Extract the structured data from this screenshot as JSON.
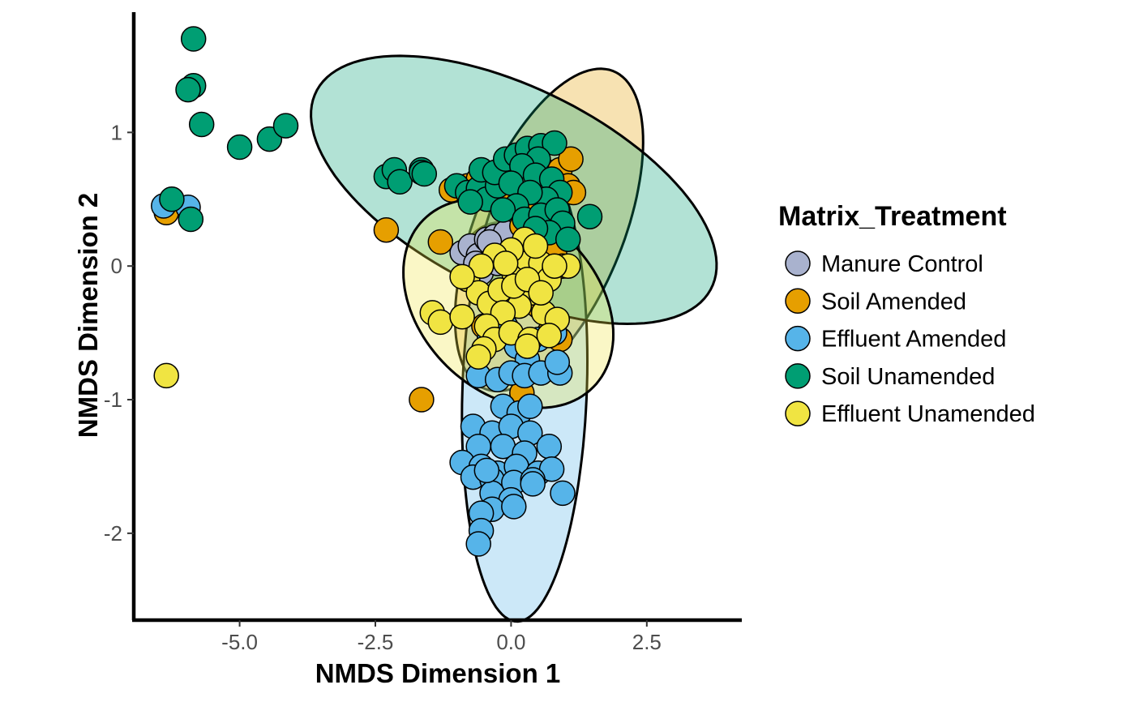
{
  "chart_data": {
    "type": "scatter",
    "xlabel": "NMDS Dimension 1",
    "ylabel": "NMDS Dimension 2",
    "xlim": [
      -6.95,
      4.25
    ],
    "ylim": [
      -2.65,
      1.9
    ],
    "xticks": [
      -5.0,
      -2.5,
      0.0,
      2.5
    ],
    "xtick_labels": [
      "-5.0",
      "-2.5",
      "0.0",
      "2.5"
    ],
    "yticks": [
      1,
      0,
      -1,
      -2
    ],
    "ytick_labels": [
      "1",
      "0",
      "-1",
      "-2"
    ],
    "grid": false,
    "legend": {
      "title": "Matrix_Treatment",
      "position": "right"
    },
    "series": [
      {
        "name": "Manure Control",
        "color": "#A9B2CE",
        "ellipse": {
          "cx": -0.15,
          "cy": 0.05,
          "rx": 0.75,
          "ry": 0.28,
          "angle_deg": 0
        },
        "points": [
          [
            -0.9,
            0.1
          ],
          [
            -0.75,
            0.15
          ],
          [
            -0.6,
            0.08
          ],
          [
            -0.45,
            0.2
          ],
          [
            -0.3,
            0.22
          ],
          [
            -0.35,
            0.05
          ],
          [
            -0.55,
            -0.05
          ],
          [
            -0.2,
            0.12
          ],
          [
            -0.1,
            0.25
          ],
          [
            -0.65,
            0.02
          ],
          [
            -0.4,
            0.18
          ],
          [
            -0.25,
            0.02
          ]
        ]
      },
      {
        "name": "Soil Amended",
        "color": "#E69F00",
        "ellipse": {
          "cx": 0.7,
          "cy": 0.27,
          "rx": 1.9,
          "ry": 0.92,
          "angle_deg": 28
        },
        "points": [
          [
            -6.35,
            0.4
          ],
          [
            -2.3,
            0.27
          ],
          [
            -1.3,
            0.18
          ],
          [
            -1.65,
            -1.0
          ],
          [
            -1.1,
            0.57
          ],
          [
            -0.8,
            0.6
          ],
          [
            -0.6,
            0.65
          ],
          [
            -0.3,
            0.7
          ],
          [
            0.1,
            0.75
          ],
          [
            0.4,
            0.8
          ],
          [
            0.7,
            0.7
          ],
          [
            0.9,
            0.72
          ],
          [
            1.1,
            0.8
          ],
          [
            1.05,
            0.6
          ],
          [
            0.9,
            0.55
          ],
          [
            0.6,
            0.45
          ],
          [
            0.3,
            0.5
          ],
          [
            0.0,
            0.55
          ],
          [
            -0.4,
            0.5
          ],
          [
            0.2,
            0.3
          ],
          [
            0.5,
            0.2
          ],
          [
            0.8,
            0.1
          ],
          [
            0.95,
            0.0
          ],
          [
            0.6,
            -0.05
          ],
          [
            0.3,
            0.05
          ],
          [
            -0.2,
            -0.4
          ],
          [
            -0.5,
            -0.45
          ],
          [
            0.7,
            -0.5
          ],
          [
            0.9,
            -0.55
          ],
          [
            0.2,
            -0.95
          ],
          [
            0.15,
            -0.6
          ],
          [
            0.5,
            -0.3
          ],
          [
            -0.35,
            -0.25
          ],
          [
            1.15,
            0.55
          ]
        ]
      },
      {
        "name": "Effluent Amended",
        "color": "#56B4E9",
        "ellipse": {
          "cx": 0.25,
          "cy": -0.92,
          "rx": 1.75,
          "ry": 1.14,
          "angle_deg": 82
        },
        "points": [
          [
            -6.4,
            0.45
          ],
          [
            -5.95,
            0.44
          ],
          [
            -0.3,
            -0.5
          ],
          [
            -0.1,
            -0.45
          ],
          [
            -0.4,
            -0.55
          ],
          [
            0.1,
            -0.6
          ],
          [
            0.5,
            -0.55
          ],
          [
            0.8,
            -0.5
          ],
          [
            0.3,
            -0.7
          ],
          [
            -0.6,
            -0.82
          ],
          [
            -0.25,
            -0.85
          ],
          [
            0.0,
            -0.8
          ],
          [
            0.25,
            -0.82
          ],
          [
            0.55,
            -0.8
          ],
          [
            0.9,
            -0.8
          ],
          [
            0.85,
            -0.72
          ],
          [
            -0.15,
            -1.05
          ],
          [
            0.15,
            -1.1
          ],
          [
            0.35,
            -1.05
          ],
          [
            -0.7,
            -1.2
          ],
          [
            -0.35,
            -1.25
          ],
          [
            0.0,
            -1.2
          ],
          [
            0.35,
            -1.25
          ],
          [
            -0.6,
            -1.35
          ],
          [
            -0.15,
            -1.35
          ],
          [
            0.25,
            -1.4
          ],
          [
            0.7,
            -1.35
          ],
          [
            -0.9,
            -1.47
          ],
          [
            -0.55,
            -1.5
          ],
          [
            -0.25,
            -1.55
          ],
          [
            0.1,
            -1.5
          ],
          [
            0.5,
            -1.55
          ],
          [
            0.75,
            -1.52
          ],
          [
            -0.7,
            -1.58
          ],
          [
            -0.35,
            -1.6
          ],
          [
            0.05,
            -1.62
          ],
          [
            0.4,
            -1.6
          ],
          [
            -0.35,
            -1.7
          ],
          [
            0.0,
            -1.75
          ],
          [
            0.95,
            -1.7
          ],
          [
            -0.35,
            -1.82
          ],
          [
            -0.55,
            -1.85
          ],
          [
            0.05,
            -1.8
          ],
          [
            -0.55,
            -1.98
          ],
          [
            -0.6,
            -2.08
          ],
          [
            0.4,
            -1.63
          ],
          [
            -0.45,
            -1.53
          ]
        ]
      },
      {
        "name": "Soil Unamended",
        "color": "#009E73",
        "ellipse": {
          "cx": 0.05,
          "cy": 0.57,
          "rx": 3.78,
          "ry": 0.82,
          "angle_deg": -9
        },
        "points": [
          [
            -5.85,
            1.7
          ],
          [
            -5.85,
            1.35
          ],
          [
            -5.95,
            1.32
          ],
          [
            -5.7,
            1.06
          ],
          [
            -5.0,
            0.89
          ],
          [
            -4.45,
            0.95
          ],
          [
            -4.15,
            1.05
          ],
          [
            -6.25,
            0.5
          ],
          [
            -5.9,
            0.35
          ],
          [
            -2.3,
            0.67
          ],
          [
            -2.15,
            0.72
          ],
          [
            -2.05,
            0.63
          ],
          [
            -1.65,
            0.72
          ],
          [
            -1.65,
            0.7
          ],
          [
            -1.6,
            0.69
          ],
          [
            -1.0,
            0.6
          ],
          [
            -0.8,
            0.55
          ],
          [
            -0.6,
            0.58
          ],
          [
            -0.45,
            0.5
          ],
          [
            -0.25,
            0.6
          ],
          [
            -0.55,
            0.72
          ],
          [
            -0.3,
            0.7
          ],
          [
            -0.1,
            0.8
          ],
          [
            0.1,
            0.83
          ],
          [
            0.3,
            0.88
          ],
          [
            0.55,
            0.9
          ],
          [
            0.8,
            0.92
          ],
          [
            0.5,
            0.8
          ],
          [
            0.2,
            0.75
          ],
          [
            0.0,
            0.62
          ],
          [
            0.45,
            0.68
          ],
          [
            0.75,
            0.65
          ],
          [
            0.9,
            0.55
          ],
          [
            0.65,
            0.5
          ],
          [
            0.35,
            0.55
          ],
          [
            0.1,
            0.45
          ],
          [
            -0.15,
            0.42
          ],
          [
            0.25,
            0.35
          ],
          [
            0.55,
            0.38
          ],
          [
            0.85,
            0.42
          ],
          [
            0.95,
            0.32
          ],
          [
            0.7,
            0.25
          ],
          [
            1.05,
            0.2
          ],
          [
            1.45,
            0.37
          ],
          [
            0.45,
            0.28
          ],
          [
            -0.75,
            0.48
          ]
        ]
      },
      {
        "name": "Effluent Unamended",
        "color": "#F0E442",
        "ellipse": {
          "cx": -0.05,
          "cy": -0.28,
          "rx": 1.95,
          "ry": 0.74,
          "angle_deg": -8
        },
        "points": [
          [
            -6.35,
            -0.82
          ],
          [
            -1.45,
            -0.35
          ],
          [
            -1.3,
            -0.42
          ],
          [
            -0.9,
            -0.38
          ],
          [
            -0.8,
            -0.1
          ],
          [
            -0.6,
            -0.2
          ],
          [
            -0.4,
            -0.28
          ],
          [
            -0.2,
            -0.18
          ],
          [
            0.05,
            -0.05
          ],
          [
            0.3,
            0.05
          ],
          [
            0.55,
            0.02
          ],
          [
            0.8,
            -0.02
          ],
          [
            1.05,
            0.0
          ],
          [
            0.25,
            0.2
          ],
          [
            0.45,
            0.15
          ],
          [
            0.0,
            0.12
          ],
          [
            -0.3,
            0.08
          ],
          [
            -0.55,
            0.0
          ],
          [
            -0.9,
            -0.08
          ],
          [
            0.7,
            -0.1
          ],
          [
            0.4,
            -0.2
          ],
          [
            0.15,
            -0.3
          ],
          [
            -0.15,
            -0.35
          ],
          [
            -0.45,
            -0.45
          ],
          [
            0.6,
            -0.35
          ],
          [
            0.85,
            -0.4
          ],
          [
            -0.3,
            -0.55
          ],
          [
            0.0,
            -0.5
          ],
          [
            0.35,
            -0.55
          ],
          [
            0.7,
            -0.52
          ],
          [
            -0.5,
            -0.62
          ],
          [
            0.3,
            -0.6
          ],
          [
            -0.6,
            -0.68
          ],
          [
            0.05,
            -0.15
          ],
          [
            0.3,
            -0.1
          ],
          [
            -0.1,
            0.02
          ],
          [
            0.55,
            -0.2
          ],
          [
            0.8,
            0.0
          ]
        ]
      }
    ]
  }
}
